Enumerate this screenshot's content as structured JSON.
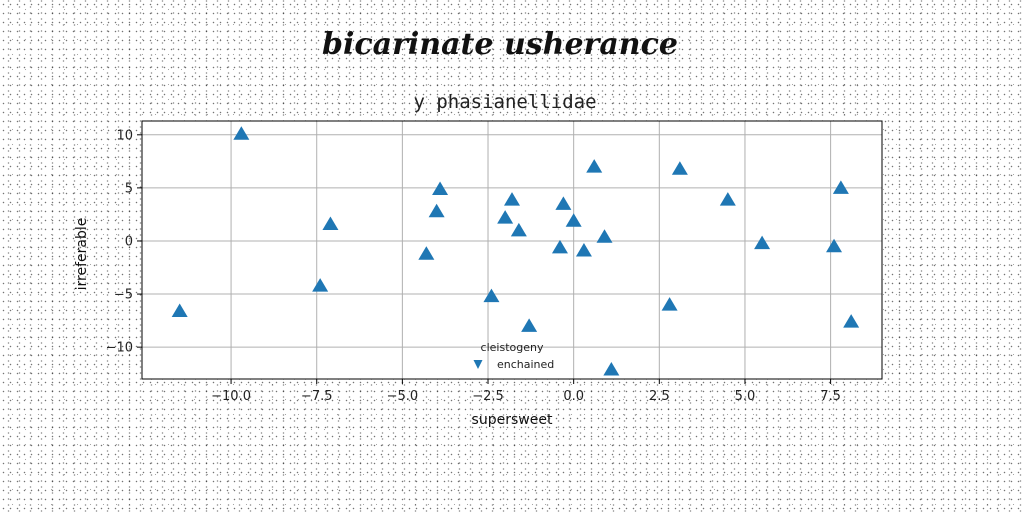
{
  "chart_data": {
    "type": "scatter",
    "title": "bicarinate usherance",
    "subtitle": "y phasianellidae",
    "xlabel": "supersweet",
    "ylabel": "irreferable",
    "xlim": [
      -12.6,
      9.0
    ],
    "ylim": [
      -13.0,
      11.3
    ],
    "xticks": [
      -10.0,
      -7.5,
      -5.0,
      -2.5,
      0.0,
      2.5,
      5.0,
      7.5
    ],
    "xtick_labels": [
      "−10.0",
      "−7.5",
      "−5.0",
      "−2.5",
      "0.0",
      "2.5",
      "5.0",
      "7.5"
    ],
    "yticks": [
      -10,
      -5,
      0,
      5,
      10
    ],
    "ytick_labels": [
      "−10",
      "−5",
      "0",
      "5",
      "10"
    ],
    "grid": true,
    "legend": {
      "title": "cleistogeny",
      "placement": "lower-center"
    },
    "series": [
      {
        "name": "enchained",
        "color": "#1f77b4",
        "marker": "triangle-up",
        "x": [
          -11.5,
          -9.7,
          -7.4,
          -7.1,
          -4.3,
          -4.0,
          -3.9,
          -2.4,
          -2.0,
          -1.8,
          -1.6,
          -1.3,
          -0.4,
          -0.3,
          0.0,
          0.3,
          0.6,
          0.9,
          1.1,
          2.8,
          3.1,
          4.5,
          5.5,
          7.6,
          7.8,
          8.1
        ],
        "y": [
          -6.6,
          10.1,
          -4.2,
          1.6,
          -1.2,
          2.8,
          4.9,
          -5.2,
          2.2,
          3.9,
          1.0,
          -8.0,
          -0.6,
          3.5,
          1.9,
          -0.9,
          7.0,
          0.4,
          -12.1,
          -6.0,
          6.8,
          3.9,
          -0.2,
          -0.5,
          5.0,
          -7.6
        ]
      }
    ]
  }
}
